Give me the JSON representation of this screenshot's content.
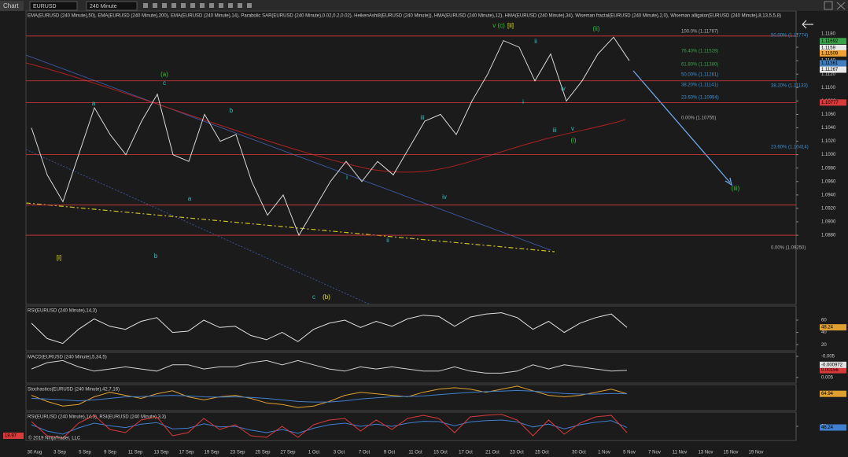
{
  "toolbar": {
    "tab": "Chart",
    "symbol": "EURUSD",
    "interval": "240 Minute"
  },
  "copyright": "© 2019 NinjaTrader, LLC",
  "chart_data": [
    {
      "type": "line",
      "title": "EMA(EURUSD (240 Minute),50), EMA(EURUSD (240 Minute),200), EMA(EURUSD (240 Minute),14), Parabolic SAR(EURUSD (240 Minute),0.02,0.2,0.02), HeikenAshi8(EURUSD (240 Minute)), HMA(EURUSD (240 Minute),12), HMA(EURUSD (240 Minute),34), Wiseman fractal(EURUSD (240 Minute),2,0), Wiseman alligator(EURUSD (240 Minute),8,13,5,5,8)",
      "ylim": [
        1.0777,
        1.1214
      ],
      "yticks": [
        {
          "value": 1.118,
          "label": "1.1180"
        },
        {
          "value": 1.116,
          "label": "1.1160"
        },
        {
          "value": 1.114,
          "label": "1.1140"
        },
        {
          "value": 1.112,
          "label": "1.1120"
        },
        {
          "value": 1.11,
          "label": "1.1100"
        },
        {
          "value": 1.108,
          "label": "1.1080"
        },
        {
          "value": 1.106,
          "label": "1.1060"
        },
        {
          "value": 1.104,
          "label": "1.1040"
        },
        {
          "value": 1.102,
          "label": "1.1020"
        },
        {
          "value": 1.1,
          "label": "1.1000"
        },
        {
          "value": 1.098,
          "label": "1.0980"
        },
        {
          "value": 1.096,
          "label": "1.0960"
        },
        {
          "value": 1.094,
          "label": "1.0940"
        },
        {
          "value": 1.092,
          "label": "1.0920"
        },
        {
          "value": 1.09,
          "label": "1.0900"
        },
        {
          "value": 1.088,
          "label": "1.0880"
        }
      ],
      "x_labels": [
        "30 Aug",
        "3 Sep",
        "5 Sep",
        "9 Sep",
        "11 Sep",
        "13 Sep",
        "17 Sep",
        "19 Sep",
        "23 Sep",
        "25 Sep",
        "27 Sep",
        "1 Oct",
        "3 Oct",
        "7 Oct",
        "9 Oct",
        "11 Oct",
        "15 Oct",
        "17 Oct",
        "21 Oct",
        "23 Oct",
        "25 Oct",
        "30 Oct",
        "1 Nov",
        "5 Nov",
        "7 Nov",
        "11 Nov",
        "13 Nov",
        "15 Nov",
        "19 Nov"
      ],
      "series": [
        {
          "color": "#d8d8d8",
          "values": [
            1.104,
            1.097,
            1.093,
            1.1,
            1.107,
            1.103,
            1.1,
            1.105,
            1.109,
            1.1,
            1.099,
            1.106,
            1.102,
            1.103,
            1.096,
            1.091,
            1.094,
            1.088,
            1.092,
            1.096,
            1.099,
            1.096,
            1.099,
            1.097,
            1.101,
            1.105,
            1.106,
            1.103,
            1.108,
            1.112,
            1.117,
            1.116,
            1.111,
            1.115,
            1.108,
            1.111,
            1.115,
            1.1175,
            1.114
          ]
        }
      ],
      "hlines": {
        "color": "#d93a3a",
        "values": [
          1.11767,
          1.111,
          1.10777,
          1.1,
          1.0925,
          1.088
        ]
      },
      "price_badges": [
        {
          "value": 1.11692,
          "color": "#3aa34a"
        },
        {
          "value": 1.1159,
          "color": "#e8e8e8"
        },
        {
          "value": 1.11509,
          "color": "#f0a030"
        },
        {
          "value": 1.11361,
          "color": "#3f7fc0"
        },
        {
          "value": 1.11267,
          "color": "#e8e8e8"
        },
        {
          "value": 1.10777,
          "color": "#d93a3a"
        }
      ],
      "fib_labels": [
        {
          "label": "100.0% (1.11767)",
          "color": "#b0b0b0"
        },
        {
          "label": "76.40% (1.11528)",
          "color": "#3aa34a"
        },
        {
          "label": "61.80% (1.11380)",
          "color": "#3aa34a"
        },
        {
          "label": "50.00% (1.11261)",
          "color": "#3f8fd0"
        },
        {
          "label": "38.20% (1.11141)",
          "color": "#3f8fd0"
        },
        {
          "label": "23.60% (1.10994)",
          "color": "#3f8fd0"
        },
        {
          "label": "0.00% (1.10755)",
          "color": "#b0b0b0"
        },
        {
          "label": "50.00% (1.11774)",
          "color": "#3f8fd0"
        },
        {
          "label": "38.20% (1.11133)",
          "color": "#3f8fd0"
        },
        {
          "label": "23.60% (1.10414)",
          "color": "#3f8fd0"
        },
        {
          "label": "0.00% (1.09250)",
          "color": "#b0b0b0"
        }
      ],
      "wave_labels": [
        {
          "text": "[i]",
          "color": "#e0e020"
        },
        {
          "text": "a",
          "color": "#30c0c0"
        },
        {
          "text": "(a)",
          "color": "#30c030"
        },
        {
          "text": "c",
          "color": "#30c0c0"
        },
        {
          "text": "b",
          "color": "#30c0c0"
        },
        {
          "text": "a",
          "color": "#30c0c0"
        },
        {
          "text": "b",
          "color": "#30c0c0"
        },
        {
          "text": "c",
          "color": "#30c0c0"
        },
        {
          "text": "(b)",
          "color": "#e0e020"
        },
        {
          "text": "i",
          "color": "#30c0c0"
        },
        {
          "text": "ii",
          "color": "#30c0c0"
        },
        {
          "text": "iii",
          "color": "#30c0c0"
        },
        {
          "text": "iv",
          "color": "#30c0c0"
        },
        {
          "text": "v (c)",
          "color": "#30c030"
        },
        {
          "text": "[ii]",
          "color": "#e0e020"
        },
        {
          "text": "i",
          "color": "#30c0c0"
        },
        {
          "text": "ii",
          "color": "#30c0c0"
        },
        {
          "text": "iii",
          "color": "#30c0c0"
        },
        {
          "text": "iv",
          "color": "#30c0c0"
        },
        {
          "text": "v",
          "color": "#30c0c0"
        },
        {
          "text": "(i)",
          "color": "#30c030"
        },
        {
          "text": "(ii)",
          "color": "#30c030"
        },
        {
          "text": "(iii)",
          "color": "#30c030"
        }
      ]
    },
    {
      "type": "line",
      "title": "RSI(EURUSD (240 Minute),14,3)",
      "ylim": [
        10,
        83
      ],
      "yticks": [
        60,
        40,
        20
      ],
      "series": [
        {
          "color": "#e0e0e0",
          "values": [
            55,
            30,
            22,
            45,
            62,
            50,
            45,
            58,
            64,
            40,
            42,
            60,
            48,
            50,
            35,
            28,
            40,
            25,
            45,
            55,
            60,
            48,
            58,
            50,
            62,
            68,
            66,
            50,
            65,
            70,
            72,
            64,
            45,
            58,
            40,
            55,
            64,
            70,
            48
          ]
        }
      ],
      "badges": [
        {
          "value": 48.24,
          "color": "#e0a030"
        }
      ]
    },
    {
      "type": "line",
      "title": "MACD(EURUSD (240 Minute),5,34,5)",
      "ylim": [
        0.0077,
        -0.0069
      ],
      "yticks": [
        0.005,
        -0.005
      ],
      "series": [
        {
          "color": "#d0d0d0",
          "values": [
            0.001,
            -0.002,
            -0.003,
            0,
            0.002,
            0.001,
            0,
            0.001,
            0.002,
            -0.001,
            -0.001,
            0.001,
            0,
            0,
            -0.002,
            -0.003,
            -0.001,
            -0.003,
            -0.001,
            0.001,
            0.002,
            0,
            0.001,
            0,
            0.001,
            0.002,
            0.002,
            0,
            0.002,
            0.003,
            0.003,
            0.002,
            -0.001,
            0.001,
            -0.001,
            0,
            0.001,
            0.002,
            0.0016
          ]
        }
      ],
      "badges": [
        {
          "value": 0.00156,
          "color": "#d93a3a"
        },
        {
          "value": -0.000972,
          "color": "#e0e0e0"
        }
      ]
    },
    {
      "type": "line",
      "title": "Stochastics(EURUSD (240 Minute),42,7,16)",
      "ylim": [
        10,
        95
      ],
      "yticks": [],
      "series": [
        {
          "color": "#e0a030",
          "values": [
            60,
            40,
            25,
            30,
            55,
            70,
            60,
            50,
            65,
            75,
            55,
            45,
            55,
            60,
            50,
            35,
            30,
            20,
            25,
            40,
            60,
            70,
            65,
            60,
            55,
            70,
            80,
            85,
            80,
            70,
            80,
            90,
            75,
            60,
            55,
            60,
            70,
            80,
            65
          ]
        },
        {
          "color": "#3f7fd0",
          "values": [
            50,
            48,
            45,
            42,
            45,
            50,
            55,
            56,
            58,
            60,
            58,
            55,
            54,
            55,
            53,
            50,
            45,
            40,
            38,
            38,
            42,
            48,
            52,
            55,
            56,
            58,
            62,
            66,
            70,
            72,
            74,
            76,
            74,
            70,
            66,
            64,
            64,
            66,
            65
          ]
        }
      ],
      "badges": [
        {
          "value": 64.94,
          "color": "#e0a030"
        }
      ]
    },
    {
      "type": "line",
      "title": "RSI(EURUSD (240 Minute),14,3), RSI(EURUSD (240 Minute),3,3)",
      "ylim": [
        5,
        95
      ],
      "yticks": [
        50
      ],
      "series": [
        {
          "color": "#3f7fd0",
          "values": [
            55,
            35,
            25,
            45,
            60,
            52,
            46,
            57,
            62,
            42,
            44,
            58,
            48,
            50,
            38,
            30,
            40,
            28,
            44,
            55,
            60,
            50,
            57,
            50,
            60,
            66,
            65,
            52,
            64,
            68,
            70,
            64,
            48,
            57,
            42,
            55,
            63,
            68,
            46
          ]
        },
        {
          "color": "#d93a3a",
          "values": [
            65,
            20,
            12,
            60,
            85,
            40,
            30,
            70,
            80,
            20,
            30,
            75,
            40,
            55,
            20,
            15,
            50,
            15,
            55,
            70,
            75,
            35,
            70,
            40,
            75,
            85,
            75,
            30,
            80,
            85,
            88,
            70,
            20,
            70,
            25,
            60,
            80,
            85,
            30
          ]
        }
      ],
      "badges": [
        {
          "value": 46.24,
          "color": "#3f7fd0"
        },
        {
          "value": 18.97,
          "color": "#d93a3a"
        }
      ]
    }
  ]
}
